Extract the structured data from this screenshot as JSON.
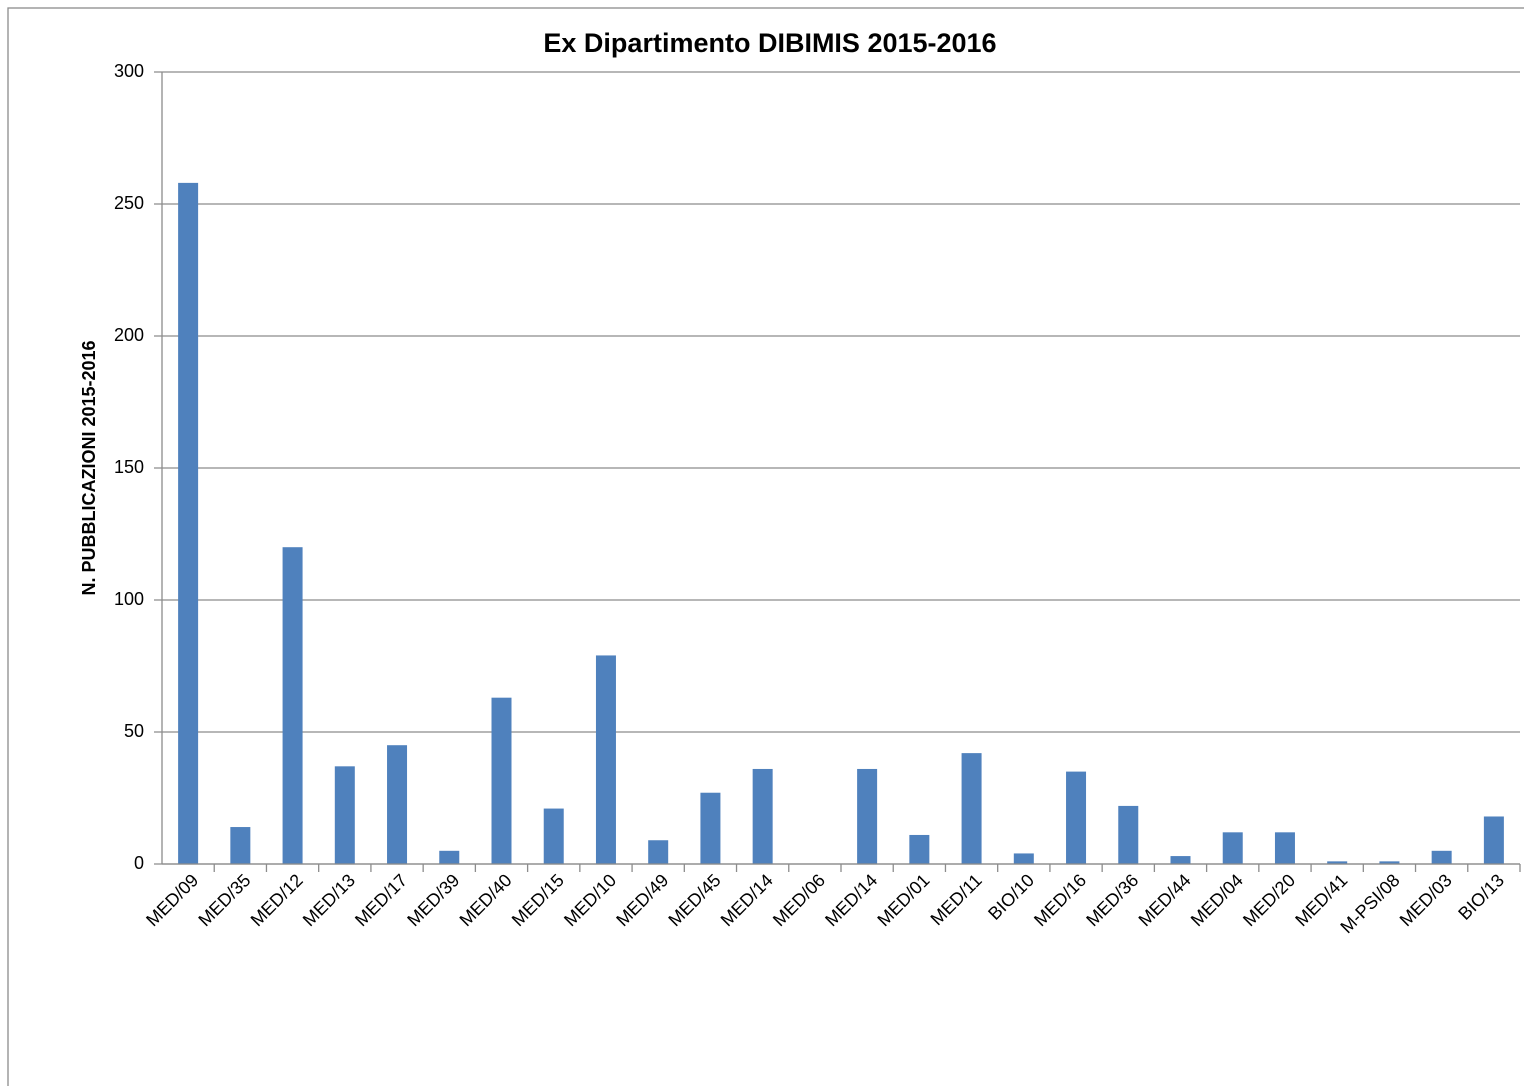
{
  "chart_data": {
    "type": "bar",
    "title": "Ex Dipartimento DIBIMIS 2015-2016",
    "y_label": "N.  PUBBLICAZIONI 2015-2016",
    "categories": [
      "MED/09",
      "MED/35",
      "MED/12",
      "MED/13",
      "MED/17",
      "MED/39",
      "MED/40",
      "MED/15",
      "MED/10",
      "MED/49",
      "MED/45",
      "MED/14",
      "MED/06",
      "MED/14",
      "MED/01",
      "MED/11",
      "BIO/10",
      "MED/16",
      "MED/36",
      "MED/44",
      "MED/04",
      "MED/20",
      "MED/41",
      "M-PSI/08",
      "MED/03",
      "BIO/13"
    ],
    "values": [
      258,
      14,
      120,
      37,
      45,
      5,
      63,
      21,
      79,
      9,
      27,
      36,
      0,
      36,
      11,
      42,
      4,
      35,
      22,
      3,
      12,
      12,
      1,
      1,
      5,
      18
    ],
    "color": "#4f81bd",
    "ylim": [
      0,
      300
    ],
    "yticks": [
      0,
      50,
      100,
      150,
      200,
      250,
      300
    ],
    "grid": true
  }
}
